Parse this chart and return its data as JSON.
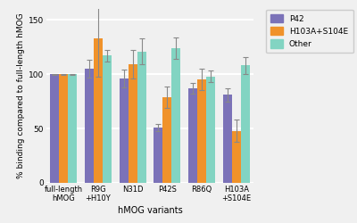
{
  "categories": [
    "full-length\nhMOG",
    "R9G\n+H10Y",
    "N31D",
    "P42S",
    "R86Q",
    "H103A\n+S104E"
  ],
  "series": {
    "P42": [
      100,
      105,
      96,
      51,
      87,
      81
    ],
    "H103A+S104E": [
      100,
      133,
      109,
      79,
      95,
      48
    ],
    "Other": [
      100,
      117,
      121,
      124,
      98,
      108
    ]
  },
  "errors": {
    "P42": [
      0.5,
      8,
      8,
      3,
      5,
      6
    ],
    "H103A+S104E": [
      0.5,
      35,
      13,
      10,
      10,
      10
    ],
    "Other": [
      0.5,
      5,
      12,
      10,
      5,
      8
    ]
  },
  "colors": {
    "P42": "#7b72b8",
    "H103A+S104E": "#f0922a",
    "Other": "#82d4c2"
  },
  "ylabel": "% binding compared to full-length hMOG",
  "xlabel": "hMOG variants",
  "ylim": [
    0,
    160
  ],
  "yticks": [
    0,
    50,
    100,
    150
  ],
  "bg_color": "#f0f0f0",
  "grid_color": "#ffffff",
  "bar_width": 0.26,
  "legend_labels": [
    "P42",
    "H103A+S104E",
    "Other"
  ]
}
